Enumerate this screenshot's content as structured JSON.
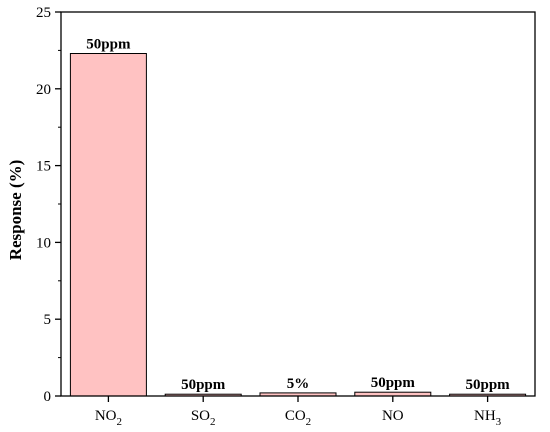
{
  "chart_data": {
    "type": "bar",
    "title": "",
    "xlabel": "",
    "ylabel": "Response (%)",
    "ylim": [
      0,
      25
    ],
    "yticks": [
      0,
      5,
      10,
      15,
      20,
      25
    ],
    "grid": false,
    "categories": [
      {
        "base": "NO",
        "sub": "2"
      },
      {
        "base": "SO",
        "sub": "2"
      },
      {
        "base": "CO",
        "sub": "2"
      },
      {
        "base": "NO",
        "sub": ""
      },
      {
        "base": "NH",
        "sub": "3"
      }
    ],
    "values": [
      22.3,
      0.12,
      0.2,
      0.25,
      0.12
    ],
    "bar_labels": [
      "50ppm",
      "50ppm",
      "5%",
      "50ppm",
      "50ppm"
    ],
    "bar_color": "#ffc2c2",
    "edge_color": "#000000"
  }
}
